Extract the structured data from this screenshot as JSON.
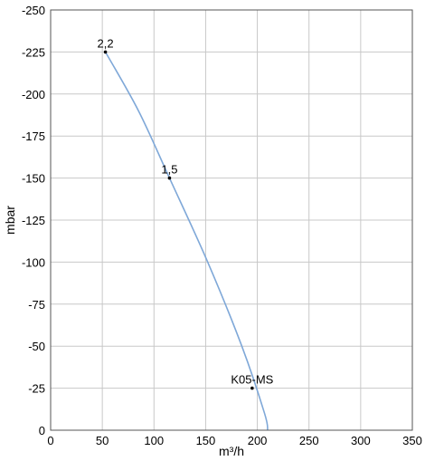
{
  "chart_data": {
    "type": "line",
    "title": "",
    "xlabel": "m³/h",
    "ylabel": "mbar",
    "xlim": [
      0,
      350
    ],
    "ylim": [
      0,
      -250
    ],
    "x_ticks": [
      "0",
      "50",
      "100",
      "150",
      "200",
      "250",
      "300",
      "350"
    ],
    "y_ticks": [
      "0",
      "-25",
      "-50",
      "-75",
      "-100",
      "-125",
      "-150",
      "-175",
      "-200",
      "-225",
      "-250"
    ],
    "grid": true,
    "legend": "none",
    "series": [
      {
        "color": "#7fa8d8",
        "x": [
          53,
          85,
          115,
          152,
          185,
          207,
          210
        ],
        "y": [
          -225,
          -190,
          -150,
          -100,
          -50,
          -10,
          0
        ]
      }
    ],
    "points": [
      {
        "x": 53,
        "y": -225,
        "label": "2,2"
      },
      {
        "x": 115,
        "y": -150,
        "label": "1,5"
      },
      {
        "x": 195,
        "y": -25,
        "label": "K05-MS"
      }
    ]
  }
}
